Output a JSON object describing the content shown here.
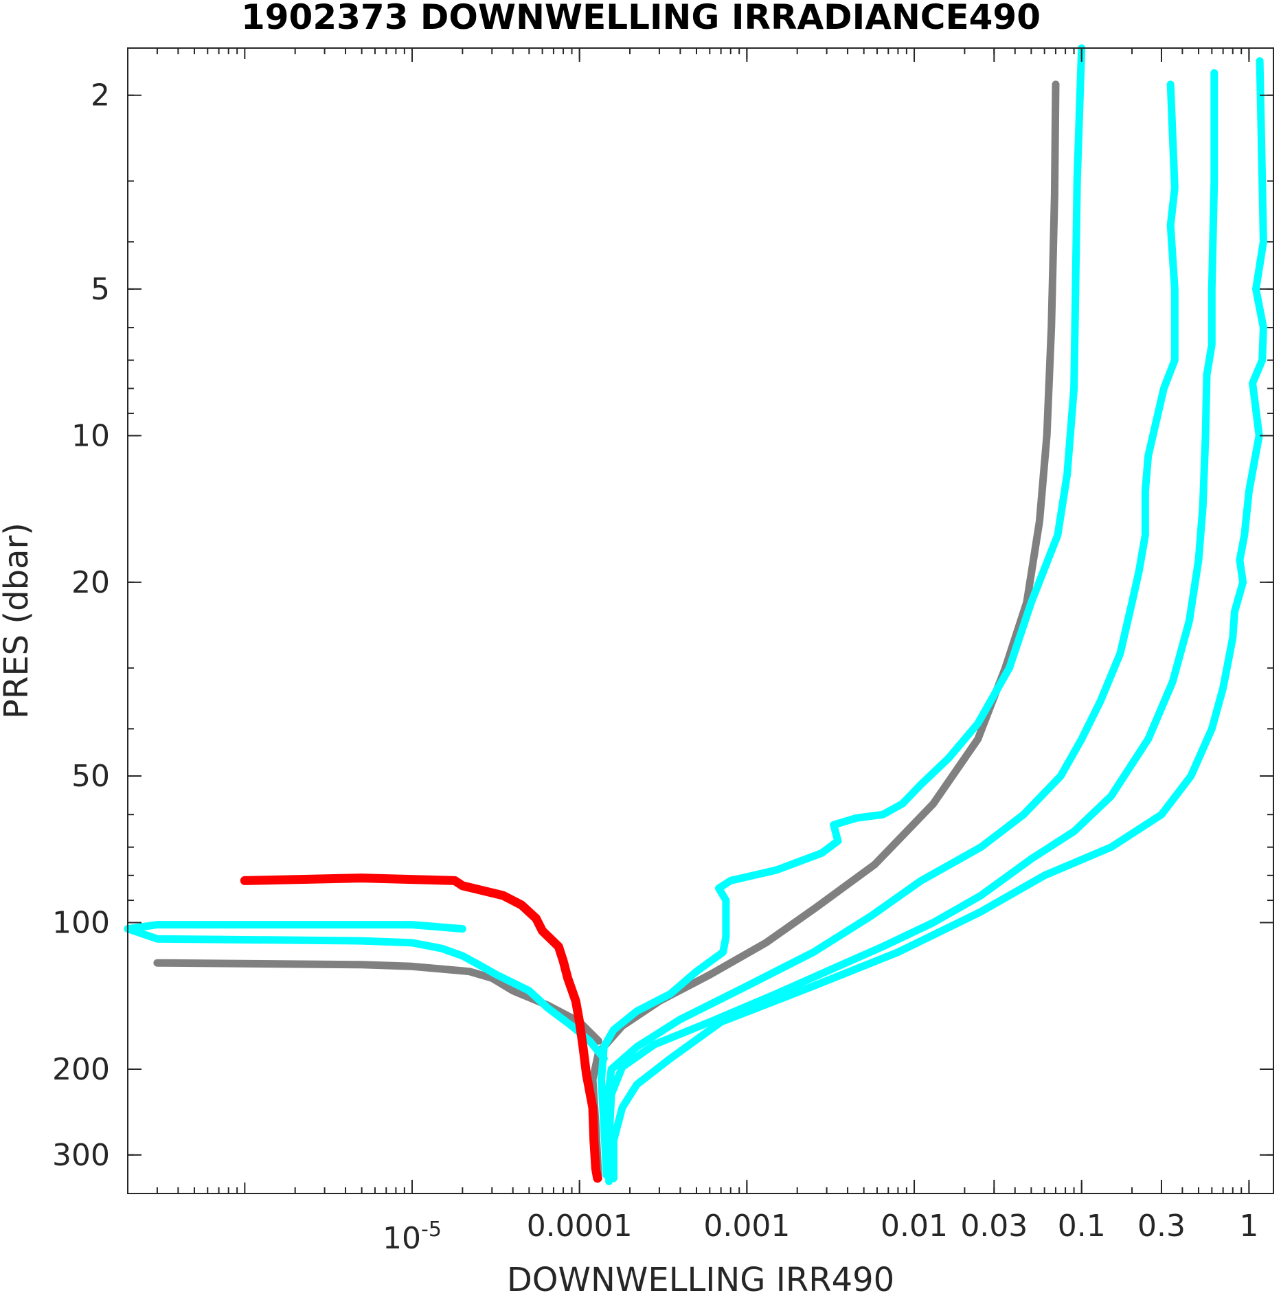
{
  "chart_data": {
    "type": "line",
    "title": "1902373  DOWNWELLING IRRADIANCE490",
    "xlabel": "DOWNWELLING IRR490",
    "ylabel": "PRES (dbar)",
    "x_scale": "log",
    "y_scale": "log",
    "y_reversed": true,
    "xlim": [
      2e-07,
      1.4
    ],
    "ylim": [
      1.6,
      360
    ],
    "x_ticks": [
      {
        "value": 1e-05,
        "label": "10",
        "exp": "-5"
      },
      {
        "value": 0.0001,
        "label": "0.0001"
      },
      {
        "value": 0.001,
        "label": "0.001"
      },
      {
        "value": 0.01,
        "label": "0.01"
      },
      {
        "value": 0.03,
        "label": "0.03"
      },
      {
        "value": 0.1,
        "label": "0.1"
      },
      {
        "value": 0.3,
        "label": "0.3"
      },
      {
        "value": 1,
        "label": "1"
      }
    ],
    "y_ticks": [
      {
        "value": 2,
        "label": "2"
      },
      {
        "value": 5,
        "label": "5"
      },
      {
        "value": 10,
        "label": "10"
      },
      {
        "value": 20,
        "label": "20"
      },
      {
        "value": 50,
        "label": "50"
      },
      {
        "value": 100,
        "label": "100"
      },
      {
        "value": 200,
        "label": "200"
      },
      {
        "value": 300,
        "label": "300"
      }
    ],
    "grid": false,
    "series": [
      {
        "color": "#808080",
        "points": [
          [
            0.07,
            1.9
          ],
          [
            0.069,
            3.2
          ],
          [
            0.066,
            6
          ],
          [
            0.062,
            10
          ],
          [
            0.056,
            15
          ],
          [
            0.047,
            22
          ],
          [
            0.035,
            30
          ],
          [
            0.024,
            42
          ],
          [
            0.013,
            57
          ],
          [
            0.0058,
            76
          ],
          [
            0.0026,
            93
          ],
          [
            0.0013,
            110
          ],
          [
            0.0006,
            128
          ],
          [
            0.0003,
            145
          ],
          [
            0.00018,
            163
          ],
          [
            0.00013,
            185
          ],
          [
            0.00012,
            210
          ],
          [
            0.000125,
            260
          ],
          [
            0.00013,
            335
          ]
        ]
      },
      {
        "color": "#808080",
        "points": [
          [
            0.00013,
            175
          ],
          [
            0.0001,
            160
          ],
          [
            6.5e-05,
            148
          ],
          [
            4e-05,
            138
          ],
          [
            3e-05,
            130
          ],
          [
            2.2e-05,
            126
          ],
          [
            1e-05,
            123
          ],
          [
            5e-06,
            122
          ],
          [
            3e-07,
            121
          ]
        ]
      },
      {
        "color": "#00ffff",
        "points": [
          [
            0.1,
            1.6
          ],
          [
            0.094,
            3
          ],
          [
            0.092,
            5
          ],
          [
            0.09,
            8
          ],
          [
            0.082,
            12
          ],
          [
            0.072,
            16
          ],
          [
            0.05,
            22
          ],
          [
            0.037,
            30
          ],
          [
            0.024,
            39
          ],
          [
            0.016,
            46
          ],
          [
            0.011,
            52
          ],
          [
            0.0085,
            57
          ],
          [
            0.0065,
            60
          ],
          [
            0.0045,
            61
          ],
          [
            0.0033,
            63
          ],
          [
            0.0035,
            68
          ],
          [
            0.0028,
            72
          ],
          [
            0.0015,
            78
          ],
          [
            0.0008,
            82
          ],
          [
            0.00068,
            85
          ],
          [
            0.00075,
            90
          ],
          [
            0.00075,
            97
          ],
          [
            0.00075,
            107
          ],
          [
            0.00072,
            115
          ],
          [
            0.0005,
            126
          ],
          [
            0.00035,
            140
          ],
          [
            0.00022,
            152
          ],
          [
            0.00016,
            166
          ],
          [
            0.00014,
            180
          ],
          [
            0.000135,
            210
          ],
          [
            0.00014,
            260
          ],
          [
            0.000145,
            330
          ]
        ]
      },
      {
        "color": "#00ffff",
        "points": [
          [
            0.00014,
            190
          ],
          [
            0.000115,
            175
          ],
          [
            9e-05,
            163
          ],
          [
            6.5e-05,
            150
          ],
          [
            5e-05,
            138
          ],
          [
            3.2e-05,
            128
          ],
          [
            2.5e-05,
            122
          ],
          [
            2e-05,
            117
          ],
          [
            1.5e-05,
            113
          ],
          [
            1e-05,
            110
          ],
          [
            5e-06,
            109
          ],
          [
            3e-07,
            108
          ],
          [
            2e-07,
            103
          ],
          [
            3e-07,
            101
          ],
          [
            1e-05,
            101
          ],
          [
            2e-05,
            103
          ]
        ]
      },
      {
        "color": "#00ffff",
        "points": [
          [
            0.34,
            1.9
          ],
          [
            0.36,
            3.1
          ],
          [
            0.34,
            3.7
          ],
          [
            0.36,
            5
          ],
          [
            0.36,
            7
          ],
          [
            0.31,
            8
          ],
          [
            0.25,
            11
          ],
          [
            0.24,
            13
          ],
          [
            0.24,
            16
          ],
          [
            0.22,
            19
          ],
          [
            0.2,
            22
          ],
          [
            0.17,
            28
          ],
          [
            0.13,
            35
          ],
          [
            0.1,
            42
          ],
          [
            0.075,
            50
          ],
          [
            0.045,
            60
          ],
          [
            0.025,
            70
          ],
          [
            0.011,
            82
          ],
          [
            0.0055,
            97
          ],
          [
            0.0025,
            115
          ],
          [
            0.001,
            135
          ],
          [
            0.0004,
            158
          ],
          [
            0.00022,
            180
          ],
          [
            0.000155,
            200
          ],
          [
            0.000145,
            240
          ],
          [
            0.000145,
            300
          ]
        ]
      },
      {
        "color": "#00ffff",
        "points": [
          [
            0.62,
            1.8
          ],
          [
            0.62,
            3
          ],
          [
            0.6,
            5
          ],
          [
            0.6,
            6.5
          ],
          [
            0.56,
            7.5
          ],
          [
            0.55,
            10
          ],
          [
            0.53,
            14
          ],
          [
            0.5,
            18
          ],
          [
            0.44,
            24
          ],
          [
            0.35,
            32
          ],
          [
            0.25,
            42
          ],
          [
            0.15,
            55
          ],
          [
            0.09,
            65
          ],
          [
            0.05,
            74
          ],
          [
            0.025,
            88
          ],
          [
            0.013,
            100
          ],
          [
            0.0065,
            112
          ],
          [
            0.0035,
            123
          ],
          [
            0.0015,
            140
          ],
          [
            0.0006,
            160
          ],
          [
            0.00028,
            178
          ],
          [
            0.00018,
            198
          ],
          [
            0.000155,
            225
          ],
          [
            0.00015,
            280
          ],
          [
            0.00015,
            340
          ]
        ]
      },
      {
        "color": "#00ffff",
        "points": [
          [
            1.16,
            1.7
          ],
          [
            1.2,
            3
          ],
          [
            1.22,
            4
          ],
          [
            1.1,
            5
          ],
          [
            1.22,
            6
          ],
          [
            1.2,
            7
          ],
          [
            1.05,
            7.8
          ],
          [
            1.15,
            10
          ],
          [
            1.0,
            13
          ],
          [
            0.94,
            16
          ],
          [
            0.88,
            18
          ],
          [
            0.92,
            20
          ],
          [
            0.82,
            23
          ],
          [
            0.8,
            26
          ],
          [
            0.7,
            33
          ],
          [
            0.6,
            40
          ],
          [
            0.45,
            50
          ],
          [
            0.3,
            60
          ],
          [
            0.15,
            70
          ],
          [
            0.06,
            80
          ],
          [
            0.025,
            95
          ],
          [
            0.008,
            115
          ],
          [
            0.0025,
            135
          ],
          [
            0.0007,
            160
          ],
          [
            0.00035,
            190
          ],
          [
            0.00022,
            215
          ],
          [
            0.00018,
            240
          ],
          [
            0.00016,
            280
          ],
          [
            0.00016,
            335
          ]
        ]
      },
      {
        "color": "#ff0000",
        "points": [
          [
            1e-06,
            82
          ],
          [
            5e-06,
            81
          ],
          [
            1.8e-05,
            82
          ],
          [
            2e-05,
            84
          ],
          [
            3.5e-05,
            88
          ],
          [
            4.5e-05,
            92
          ],
          [
            5.5e-05,
            98
          ],
          [
            6e-05,
            104
          ],
          [
            7.5e-05,
            112
          ],
          [
            8e-05,
            120
          ],
          [
            8.5e-05,
            130
          ],
          [
            9.5e-05,
            145
          ],
          [
            0.0001,
            160
          ],
          [
            0.000105,
            180
          ],
          [
            0.00011,
            205
          ],
          [
            0.00012,
            240
          ],
          [
            0.000122,
            280
          ],
          [
            0.000125,
            320
          ],
          [
            0.000128,
            335
          ]
        ]
      }
    ]
  }
}
